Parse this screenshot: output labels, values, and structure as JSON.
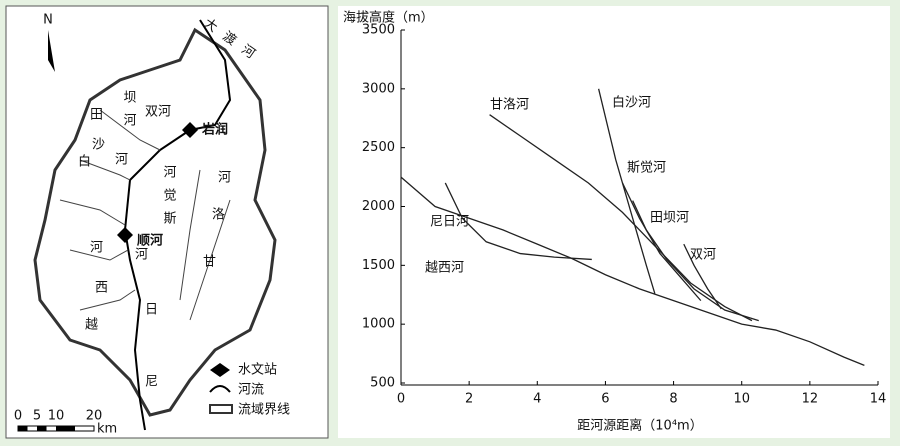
{
  "map": {
    "north": "N",
    "stations": [
      "岩润",
      "顺河"
    ],
    "rivers": [
      "大渡河",
      "坝河",
      "田",
      "双河",
      "沙",
      "白",
      "河",
      "河觉斯",
      "河",
      "洛",
      "甘",
      "河",
      "河",
      "西",
      "越",
      "日",
      "尼"
    ],
    "legend": [
      "水文站",
      "河流",
      "流域界线"
    ],
    "scale_ticks": [
      0,
      5,
      10,
      20
    ],
    "scale_unit": "km"
  },
  "chart_data": {
    "type": "line",
    "y_label": "海拔高度（m）",
    "x_label": "距河源距离（10⁴m）",
    "xlim": [
      0,
      14
    ],
    "xticks": [
      0,
      2,
      4,
      6,
      8,
      10,
      12,
      14
    ],
    "ylim": [
      500,
      3500
    ],
    "yticks": [
      500,
      1000,
      1500,
      2000,
      2500,
      3000,
      3500
    ],
    "color": "#222",
    "series": [
      {
        "name": "尼日河",
        "x": [
          0,
          1,
          2,
          3,
          4,
          5,
          6,
          7,
          8,
          9,
          10,
          11,
          12,
          13,
          13.6
        ],
        "values": [
          2250,
          2000,
          1900,
          1800,
          1680,
          1560,
          1420,
          1300,
          1200,
          1100,
          1000,
          950,
          850,
          720,
          650
        ]
      },
      {
        "name": "越西河",
        "x": [
          1.3,
          1.8,
          2.5,
          3.5,
          4.5,
          5.6
        ],
        "values": [
          2200,
          1900,
          1700,
          1600,
          1570,
          1550
        ]
      },
      {
        "name": "甘洛河",
        "x": [
          2.6,
          3.5,
          4.5,
          5.5,
          6.5,
          7.5,
          8.5,
          9.5,
          10.3
        ],
        "values": [
          2780,
          2600,
          2400,
          2200,
          1950,
          1650,
          1350,
          1150,
          1030
        ]
      },
      {
        "name": "白沙河",
        "x": [
          5.8,
          6.3,
          6.8,
          7.2,
          7.45
        ],
        "values": [
          3000,
          2400,
          1900,
          1500,
          1260
        ]
      },
      {
        "name": "斯觉河",
        "x": [
          6.5,
          7.0,
          7.6,
          8.2,
          8.8
        ],
        "values": [
          2200,
          1900,
          1600,
          1400,
          1200
        ]
      },
      {
        "name": "田坝河",
        "x": [
          6.8,
          7.2,
          7.8,
          8.6,
          9.5,
          10.5
        ],
        "values": [
          2050,
          1800,
          1550,
          1300,
          1120,
          1030
        ]
      },
      {
        "name": "双河",
        "x": [
          8.3,
          8.6,
          9.0,
          9.4
        ],
        "values": [
          1680,
          1500,
          1300,
          1130
        ]
      }
    ]
  }
}
